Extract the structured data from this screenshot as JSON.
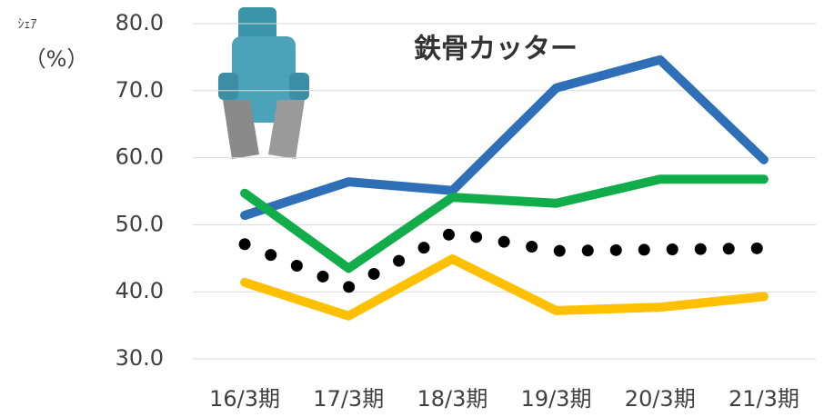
{
  "chart_data": {
    "type": "line",
    "title": "鉄骨カッター",
    "y_label_lines": [
      "ｼｪｱ",
      "（%）"
    ],
    "categories": [
      "16/3期",
      "17/3期",
      "18/3期",
      "19/3期",
      "20/3期",
      "21/3期"
    ],
    "series": [
      {
        "color": "#2e6fb7",
        "style": "solid",
        "values": [
          51.4,
          56.4,
          55.1,
          70.4,
          74.6,
          59.7
        ]
      },
      {
        "color": "#12ad4b",
        "style": "solid",
        "values": [
          54.7,
          43.5,
          54.1,
          53.2,
          56.8,
          56.8
        ]
      },
      {
        "color": "#000000",
        "style": "dotted",
        "values": [
          47.1,
          40.7,
          48.8,
          46.1,
          46.3,
          46.5
        ]
      },
      {
        "color": "#ffc000",
        "style": "solid",
        "values": [
          41.4,
          36.4,
          44.9,
          37.2,
          37.7,
          39.3
        ]
      }
    ],
    "ylim": [
      30,
      80
    ],
    "yticks": [
      {
        "value": 30,
        "label": "30.0"
      },
      {
        "value": 40,
        "label": "40.0"
      },
      {
        "value": 50,
        "label": "50.0"
      },
      {
        "value": 60,
        "label": "60.0"
      },
      {
        "value": 70,
        "label": "70.0"
      },
      {
        "value": 80,
        "label": "80.0"
      }
    ],
    "grid": true
  }
}
